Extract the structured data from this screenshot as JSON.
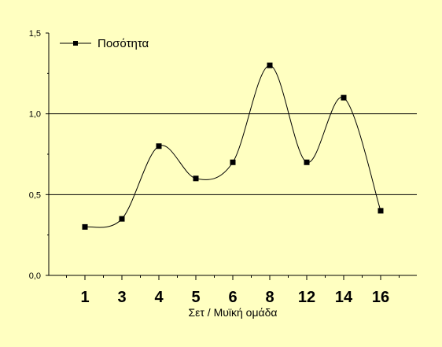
{
  "chart_data": {
    "type": "line",
    "categories": [
      "1",
      "3",
      "4",
      "5",
      "6",
      "8",
      "12",
      "14",
      "16"
    ],
    "series": [
      {
        "name": "Ποσότητα",
        "values": [
          0.3,
          0.35,
          0.8,
          0.6,
          0.7,
          1.3,
          0.7,
          1.1,
          0.4
        ]
      }
    ],
    "xlabel": "Σετ / Μυϊκή ομάδα",
    "ylabel": "",
    "ylim": [
      0,
      1.5
    ],
    "yticks": [
      0.0,
      0.5,
      1.0,
      1.5
    ],
    "ytick_labels": [
      "0,0",
      "0,5",
      "1,0",
      "1,5"
    ],
    "gridlines_y": [
      0.5,
      1.0
    ],
    "smooth": true,
    "marker": "square",
    "legend_position": "top-left",
    "colors": {
      "background": "#FFFFC1",
      "line": "#000000",
      "marker": "#000000"
    }
  }
}
